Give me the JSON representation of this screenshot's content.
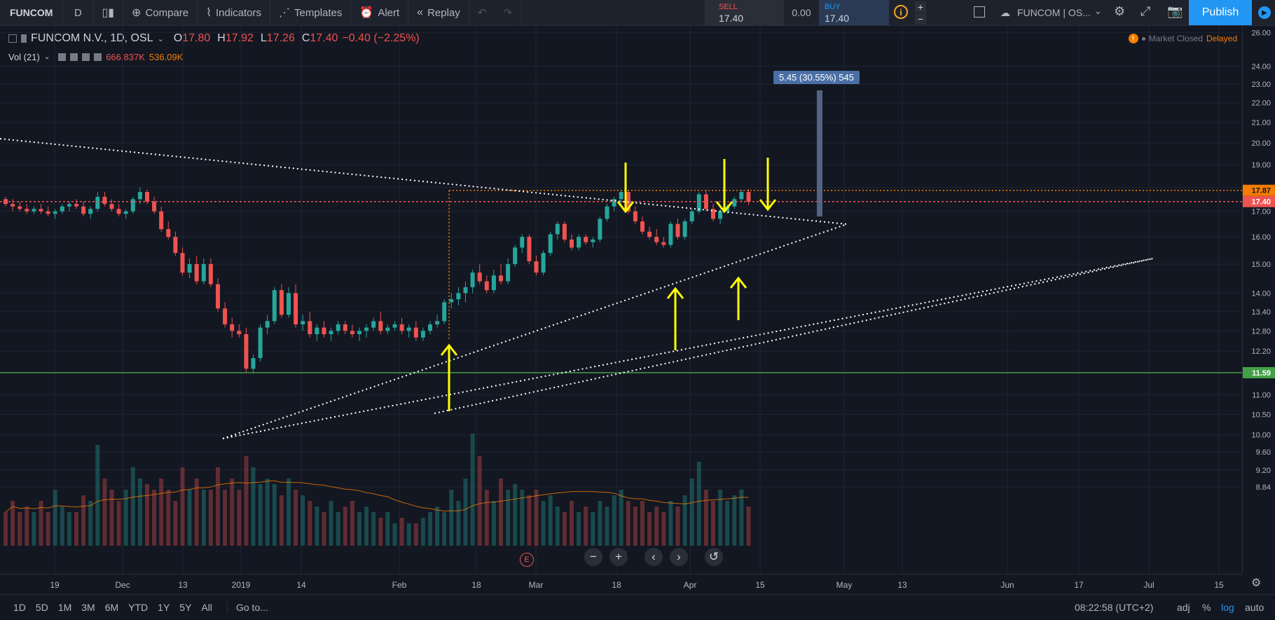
{
  "toolbar": {
    "symbol": "FUNCOM",
    "interval": "D",
    "compare": "Compare",
    "indicators": "Indicators",
    "templates": "Templates",
    "alert": "Alert",
    "replay": "Replay",
    "sell_label": "SELL",
    "sell_price": "17.40",
    "spread": "0.00",
    "buy_label": "BUY",
    "buy_price": "17.40",
    "layout_name": "FUNCOM | OS...",
    "publish": "Publish"
  },
  "legend": {
    "title": "FUNCOM N.V., 1D, OSL",
    "o_label": "O",
    "o": "17.80",
    "h_label": "H",
    "h": "17.92",
    "l_label": "L",
    "l": "17.26",
    "c_label": "C",
    "c": "17.40",
    "change": "−0.40 (−2.25%)",
    "vol_title": "Vol (21)",
    "vol_value": "666.837K",
    "vol_ma": "536.09K"
  },
  "status": {
    "market": "Market Closed",
    "delayed": "Delayed"
  },
  "measure_label": "5.45 (30.55%) 545",
  "price_axis": {
    "labels": [
      "26.00",
      "24.00",
      "23.00",
      "22.00",
      "21.00",
      "20.00",
      "19.00",
      "18.00",
      "17.00",
      "16.00",
      "15.00",
      "14.00",
      "13.40",
      "12.80",
      "12.20",
      "11.00",
      "10.50",
      "10.00",
      "9.60",
      "9.20",
      "8.84"
    ],
    "resistance": "17.87",
    "last": "17.40",
    "support": "11.59"
  },
  "time_axis": [
    "19",
    "Dec",
    "13",
    "2019",
    "14",
    "Feb",
    "18",
    "Mar",
    "18",
    "Apr",
    "15",
    "May",
    "13",
    "Jun",
    "17",
    "Jul",
    "15"
  ],
  "bottom": {
    "ranges": [
      "1D",
      "5D",
      "1M",
      "3M",
      "6M",
      "YTD",
      "1Y",
      "5Y",
      "All"
    ],
    "goto": "Go to...",
    "clock": "08:22:58 (UTC+2)",
    "adj": "adj",
    "pct": "%",
    "log": "log",
    "auto": "auto"
  },
  "colors": {
    "up": "#26a69a",
    "down": "#ef5350",
    "accent": "#2196f3",
    "resistance": "#f57c00",
    "support": "#43a047",
    "arrows": "#ffff00"
  },
  "chart_data": {
    "type": "candlestick",
    "symbol": "FUNCOM N.V., 1D, OSL",
    "ohlc": [
      [
        17.5,
        17.6,
        17.2,
        17.3
      ],
      [
        17.3,
        17.5,
        17.0,
        17.2
      ],
      [
        17.2,
        17.4,
        17.0,
        17.1
      ],
      [
        17.1,
        17.3,
        16.9,
        17.0
      ],
      [
        17.0,
        17.2,
        16.9,
        17.1
      ],
      [
        17.1,
        17.3,
        16.9,
        17.0
      ],
      [
        17.0,
        17.2,
        16.8,
        16.9
      ],
      [
        16.9,
        17.1,
        16.7,
        17.0
      ],
      [
        17.0,
        17.3,
        16.9,
        17.2
      ],
      [
        17.2,
        17.4,
        17.0,
        17.3
      ],
      [
        17.3,
        17.5,
        17.1,
        17.2
      ],
      [
        17.2,
        17.4,
        16.8,
        16.9
      ],
      [
        16.9,
        17.2,
        16.7,
        17.1
      ],
      [
        17.1,
        17.8,
        17.0,
        17.6
      ],
      [
        17.6,
        17.8,
        17.2,
        17.3
      ],
      [
        17.3,
        17.5,
        17.0,
        17.1
      ],
      [
        17.1,
        17.3,
        16.8,
        16.9
      ],
      [
        16.9,
        17.1,
        16.7,
        17.0
      ],
      [
        17.0,
        17.6,
        16.9,
        17.5
      ],
      [
        17.5,
        18.0,
        17.3,
        17.8
      ],
      [
        17.8,
        17.9,
        17.3,
        17.4
      ],
      [
        17.4,
        17.6,
        16.9,
        17.0
      ],
      [
        17.0,
        17.2,
        16.2,
        16.3
      ],
      [
        16.3,
        16.6,
        15.9,
        16.0
      ],
      [
        16.0,
        16.2,
        15.3,
        15.4
      ],
      [
        15.4,
        15.6,
        14.6,
        14.7
      ],
      [
        14.7,
        15.2,
        14.5,
        15.0
      ],
      [
        15.0,
        15.3,
        14.3,
        14.4
      ],
      [
        14.4,
        15.2,
        14.3,
        15.0
      ],
      [
        15.0,
        15.2,
        14.2,
        14.3
      ],
      [
        14.3,
        14.5,
        13.4,
        13.5
      ],
      [
        13.5,
        13.7,
        12.9,
        13.0
      ],
      [
        13.0,
        13.2,
        12.6,
        12.8
      ],
      [
        12.8,
        13.0,
        12.6,
        12.7
      ],
      [
        12.7,
        12.9,
        11.6,
        11.7
      ],
      [
        11.7,
        12.1,
        11.6,
        12.0
      ],
      [
        12.0,
        13.0,
        11.9,
        12.9
      ],
      [
        12.9,
        13.3,
        12.7,
        13.1
      ],
      [
        13.1,
        14.2,
        13.0,
        14.1
      ],
      [
        14.1,
        14.3,
        13.2,
        13.3
      ],
      [
        13.3,
        14.2,
        13.2,
        14.0
      ],
      [
        14.0,
        14.3,
        12.9,
        13.0
      ],
      [
        13.0,
        13.3,
        12.8,
        13.1
      ],
      [
        13.1,
        13.4,
        12.6,
        12.7
      ],
      [
        12.7,
        13.0,
        12.5,
        12.9
      ],
      [
        12.9,
        13.1,
        12.6,
        12.7
      ],
      [
        12.7,
        12.9,
        12.5,
        12.8
      ],
      [
        12.8,
        13.1,
        12.7,
        13.0
      ],
      [
        13.0,
        13.1,
        12.7,
        12.8
      ],
      [
        12.8,
        13.0,
        12.6,
        12.7
      ],
      [
        12.7,
        12.9,
        12.5,
        12.8
      ],
      [
        12.8,
        13.0,
        12.6,
        12.9
      ],
      [
        12.9,
        13.2,
        12.8,
        13.1
      ],
      [
        13.1,
        13.4,
        12.7,
        12.8
      ],
      [
        12.8,
        13.0,
        12.7,
        12.9
      ],
      [
        12.9,
        13.1,
        12.8,
        13.0
      ],
      [
        13.0,
        13.2,
        12.7,
        12.8
      ],
      [
        12.8,
        13.0,
        12.6,
        12.9
      ],
      [
        12.9,
        13.1,
        12.5,
        12.6
      ],
      [
        12.6,
        12.9,
        12.5,
        12.8
      ],
      [
        12.8,
        13.1,
        12.7,
        13.0
      ],
      [
        13.0,
        13.3,
        12.9,
        13.1
      ],
      [
        13.1,
        13.8,
        13.0,
        13.7
      ],
      [
        13.7,
        14.0,
        13.5,
        13.8
      ],
      [
        13.8,
        14.2,
        13.6,
        14.0
      ],
      [
        14.0,
        14.4,
        13.7,
        14.2
      ],
      [
        14.2,
        14.8,
        14.0,
        14.7
      ],
      [
        14.7,
        15.0,
        14.3,
        14.4
      ],
      [
        14.4,
        14.6,
        14.0,
        14.1
      ],
      [
        14.1,
        14.8,
        14.0,
        14.6
      ],
      [
        14.6,
        15.0,
        14.3,
        14.4
      ],
      [
        14.4,
        15.2,
        14.3,
        15.0
      ],
      [
        15.0,
        15.7,
        14.9,
        15.6
      ],
      [
        15.6,
        16.1,
        15.4,
        16.0
      ],
      [
        16.0,
        16.1,
        15.0,
        15.1
      ],
      [
        15.1,
        15.3,
        14.6,
        14.7
      ],
      [
        14.7,
        15.5,
        14.6,
        15.4
      ],
      [
        15.4,
        16.2,
        15.3,
        16.1
      ],
      [
        16.1,
        16.6,
        15.9,
        16.5
      ],
      [
        16.5,
        16.6,
        15.8,
        15.9
      ],
      [
        15.9,
        16.1,
        15.5,
        15.6
      ],
      [
        15.6,
        16.1,
        15.5,
        16.0
      ],
      [
        16.0,
        16.1,
        15.7,
        15.8
      ],
      [
        15.8,
        16.0,
        15.6,
        15.9
      ],
      [
        15.9,
        16.8,
        15.8,
        16.7
      ],
      [
        16.7,
        17.3,
        16.6,
        17.2
      ],
      [
        17.2,
        17.6,
        17.0,
        17.5
      ],
      [
        17.5,
        17.9,
        17.3,
        17.8
      ],
      [
        17.8,
        17.9,
        16.9,
        17.0
      ],
      [
        17.0,
        17.2,
        16.5,
        16.6
      ],
      [
        16.6,
        16.8,
        16.1,
        16.2
      ],
      [
        16.2,
        16.4,
        15.9,
        16.0
      ],
      [
        16.0,
        16.3,
        15.7,
        15.8
      ],
      [
        15.8,
        16.0,
        15.6,
        15.7
      ],
      [
        15.7,
        16.6,
        15.6,
        16.5
      ],
      [
        16.5,
        16.7,
        15.9,
        16.0
      ],
      [
        16.0,
        16.7,
        15.9,
        16.6
      ],
      [
        16.6,
        17.1,
        16.5,
        17.0
      ],
      [
        17.0,
        17.8,
        16.9,
        17.7
      ],
      [
        17.7,
        17.9,
        17.0,
        17.1
      ],
      [
        17.1,
        17.3,
        16.6,
        16.7
      ],
      [
        16.7,
        17.1,
        16.5,
        17.0
      ],
      [
        17.0,
        17.3,
        16.9,
        17.2
      ],
      [
        17.2,
        17.6,
        17.1,
        17.5
      ],
      [
        17.5,
        17.9,
        17.4,
        17.8
      ],
      [
        17.8,
        17.92,
        17.26,
        17.4
      ]
    ],
    "volume_relative": [
      0.3,
      0.4,
      0.3,
      0.35,
      0.3,
      0.4,
      0.3,
      0.5,
      0.35,
      0.3,
      0.3,
      0.45,
      0.4,
      0.9,
      0.6,
      0.5,
      0.4,
      0.5,
      0.7,
      0.6,
      0.55,
      0.5,
      0.6,
      0.5,
      0.4,
      0.7,
      0.5,
      0.6,
      0.5,
      0.5,
      0.7,
      0.5,
      0.6,
      0.5,
      0.8,
      0.7,
      0.55,
      0.6,
      0.55,
      0.45,
      0.6,
      0.5,
      0.45,
      0.4,
      0.35,
      0.3,
      0.4,
      0.3,
      0.35,
      0.4,
      0.3,
      0.35,
      0.3,
      0.25,
      0.3,
      0.2,
      0.25,
      0.2,
      0.2,
      0.25,
      0.3,
      0.35,
      0.3,
      0.5,
      0.4,
      0.6,
      1.0,
      0.8,
      0.5,
      0.4,
      0.6,
      0.5,
      0.55,
      0.5,
      0.45,
      0.5,
      0.4,
      0.45,
      0.35,
      0.3,
      0.4,
      0.3,
      0.35,
      0.3,
      0.4,
      0.35,
      0.45,
      0.5,
      0.4,
      0.35,
      0.4,
      0.3,
      0.35,
      0.3,
      0.4,
      0.35,
      0.45,
      0.6,
      0.75,
      0.5,
      0.4,
      0.5,
      0.4,
      0.45,
      0.5,
      0.35
    ],
    "resistance": 17.87,
    "support": 11.59,
    "last_price": 17.4,
    "measure": "5.45 (30.55%) 545"
  }
}
